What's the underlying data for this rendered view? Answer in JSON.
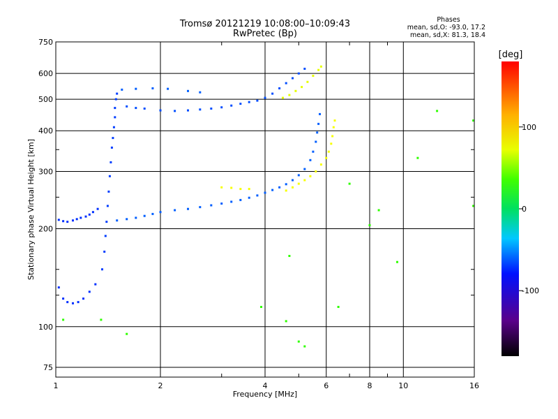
{
  "title": "Tromsø 20121219 10:08:00–10:09:43",
  "subtitle": "RwPretec (Bp)",
  "stats": {
    "heading": "Phases",
    "line1": "mean, sd,O: -93.0, 17.2",
    "line2": "mean, sd,X: 81.3, 18.4"
  },
  "colorbar": {
    "label": "[deg]",
    "range": [
      -180,
      180
    ],
    "ticks": [
      100,
      0,
      -100
    ],
    "tick_labels": [
      "100",
      "0",
      "-100"
    ]
  },
  "chart_data": {
    "type": "scatter",
    "title": "Tromsø 20121219 10:08:00–10:09:43",
    "subtitle": "RwPretec (Bp)",
    "xlabel": "Frequency [MHz]",
    "ylabel": "Stationary phase Virtual Height [km]",
    "xscale": "log",
    "yscale": "log",
    "xlim": [
      1,
      16
    ],
    "ylim": [
      70,
      750
    ],
    "x_ticks": [
      1,
      2,
      4,
      6,
      8,
      10,
      16
    ],
    "x_tick_labels": [
      "1",
      "2",
      "4",
      "6",
      "8",
      "10",
      "16"
    ],
    "x_minor": [
      3,
      5,
      7,
      9
    ],
    "y_ticks": [
      75,
      100,
      200,
      300,
      400,
      500,
      600,
      750
    ],
    "y_tick_labels": [
      "75",
      "100",
      "200",
      "300",
      "400",
      "500",
      "600",
      "750"
    ],
    "y_minor": [
      125,
      150,
      250,
      350
    ],
    "grid": true,
    "color_scale": "phase (deg), rainbow -180 to 180",
    "series": [
      {
        "points": [
          [
            1.02,
            213
          ],
          [
            1.05,
            211
          ],
          [
            1.08,
            210
          ],
          [
            1.12,
            212
          ],
          [
            1.15,
            214
          ],
          [
            1.18,
            216
          ],
          [
            1.22,
            218
          ],
          [
            1.25,
            221
          ],
          [
            1.28,
            225
          ],
          [
            1.32,
            230
          ],
          [
            1.02,
            132
          ],
          [
            1.05,
            122
          ],
          [
            1.08,
            119
          ],
          [
            1.12,
            118
          ],
          [
            1.16,
            119
          ],
          [
            1.2,
            122
          ],
          [
            1.25,
            128
          ],
          [
            1.3,
            135
          ]
        ],
        "phase": -115
      },
      {
        "points": [
          [
            1.36,
            150
          ],
          [
            1.38,
            170
          ],
          [
            1.39,
            190
          ],
          [
            1.4,
            210
          ],
          [
            1.41,
            235
          ],
          [
            1.42,
            260
          ],
          [
            1.43,
            290
          ],
          [
            1.44,
            320
          ],
          [
            1.45,
            355
          ],
          [
            1.46,
            380
          ],
          [
            1.47,
            410
          ],
          [
            1.48,
            440
          ],
          [
            1.48,
            470
          ],
          [
            1.49,
            500
          ],
          [
            1.5,
            520
          ]
        ],
        "phase": -110
      },
      {
        "points": [
          [
            1.5,
            212
          ],
          [
            1.6,
            214
          ],
          [
            1.7,
            216
          ],
          [
            1.8,
            219
          ],
          [
            1.9,
            222
          ],
          [
            2.0,
            225
          ],
          [
            2.2,
            228
          ],
          [
            2.4,
            230
          ],
          [
            2.6,
            233
          ],
          [
            2.8,
            236
          ],
          [
            3.0,
            239
          ],
          [
            3.2,
            242
          ],
          [
            3.4,
            245
          ],
          [
            3.6,
            249
          ],
          [
            3.8,
            253
          ],
          [
            4.0,
            258
          ],
          [
            4.2,
            263
          ],
          [
            4.4,
            268
          ],
          [
            4.6,
            274
          ],
          [
            4.8,
            282
          ],
          [
            5.0,
            292
          ],
          [
            5.2,
            305
          ],
          [
            5.4,
            325
          ],
          [
            5.5,
            345
          ],
          [
            5.6,
            370
          ],
          [
            5.65,
            395
          ],
          [
            5.7,
            420
          ],
          [
            5.75,
            450
          ]
        ],
        "phase": -100
      },
      {
        "points": [
          [
            1.6,
            475
          ],
          [
            1.7,
            470
          ],
          [
            1.8,
            468
          ],
          [
            2.0,
            462
          ],
          [
            2.2,
            460
          ],
          [
            2.4,
            462
          ],
          [
            2.6,
            465
          ],
          [
            2.8,
            468
          ],
          [
            3.0,
            472
          ],
          [
            3.2,
            478
          ],
          [
            3.4,
            484
          ],
          [
            3.6,
            490
          ],
          [
            3.8,
            495
          ],
          [
            4.0,
            505
          ],
          [
            4.2,
            520
          ],
          [
            4.4,
            540
          ],
          [
            4.6,
            560
          ],
          [
            4.8,
            580
          ],
          [
            5.0,
            600
          ],
          [
            5.2,
            620
          ]
        ],
        "phase": -105
      },
      {
        "points": [
          [
            1.55,
            535
          ],
          [
            1.7,
            538
          ],
          [
            1.9,
            540
          ],
          [
            2.1,
            538
          ],
          [
            2.4,
            530
          ],
          [
            2.6,
            525
          ]
        ],
        "phase": -100
      },
      {
        "points": [
          [
            3.0,
            268
          ],
          [
            3.2,
            267
          ],
          [
            3.4,
            265
          ],
          [
            3.6,
            265
          ],
          [
            4.6,
            262
          ],
          [
            4.8,
            268
          ],
          [
            5.0,
            275
          ],
          [
            5.2,
            282
          ],
          [
            5.4,
            290
          ],
          [
            5.6,
            300
          ],
          [
            5.8,
            315
          ],
          [
            6.0,
            330
          ],
          [
            6.1,
            345
          ],
          [
            6.2,
            365
          ],
          [
            6.25,
            385
          ],
          [
            6.3,
            410
          ],
          [
            6.35,
            430
          ]
        ],
        "phase": 100
      },
      {
        "points": [
          [
            4.5,
            505
          ],
          [
            4.7,
            515
          ],
          [
            4.9,
            530
          ],
          [
            5.1,
            545
          ],
          [
            5.3,
            565
          ],
          [
            5.5,
            590
          ],
          [
            5.7,
            615
          ],
          [
            5.8,
            630
          ]
        ],
        "phase": 95
      },
      {
        "points": [
          [
            1.05,
            105
          ],
          [
            1.35,
            105
          ],
          [
            1.6,
            95
          ],
          [
            3.9,
            115
          ],
          [
            4.6,
            104
          ],
          [
            4.7,
            165
          ],
          [
            5.0,
            90
          ],
          [
            5.2,
            87
          ],
          [
            6.5,
            115
          ],
          [
            7.0,
            275
          ],
          [
            8.0,
            205
          ],
          [
            8.5,
            228
          ],
          [
            9.6,
            158
          ],
          [
            11.0,
            330
          ],
          [
            12.5,
            460
          ],
          [
            15.9,
            430
          ],
          [
            15.9,
            235
          ]
        ],
        "phase": 40
      }
    ]
  }
}
